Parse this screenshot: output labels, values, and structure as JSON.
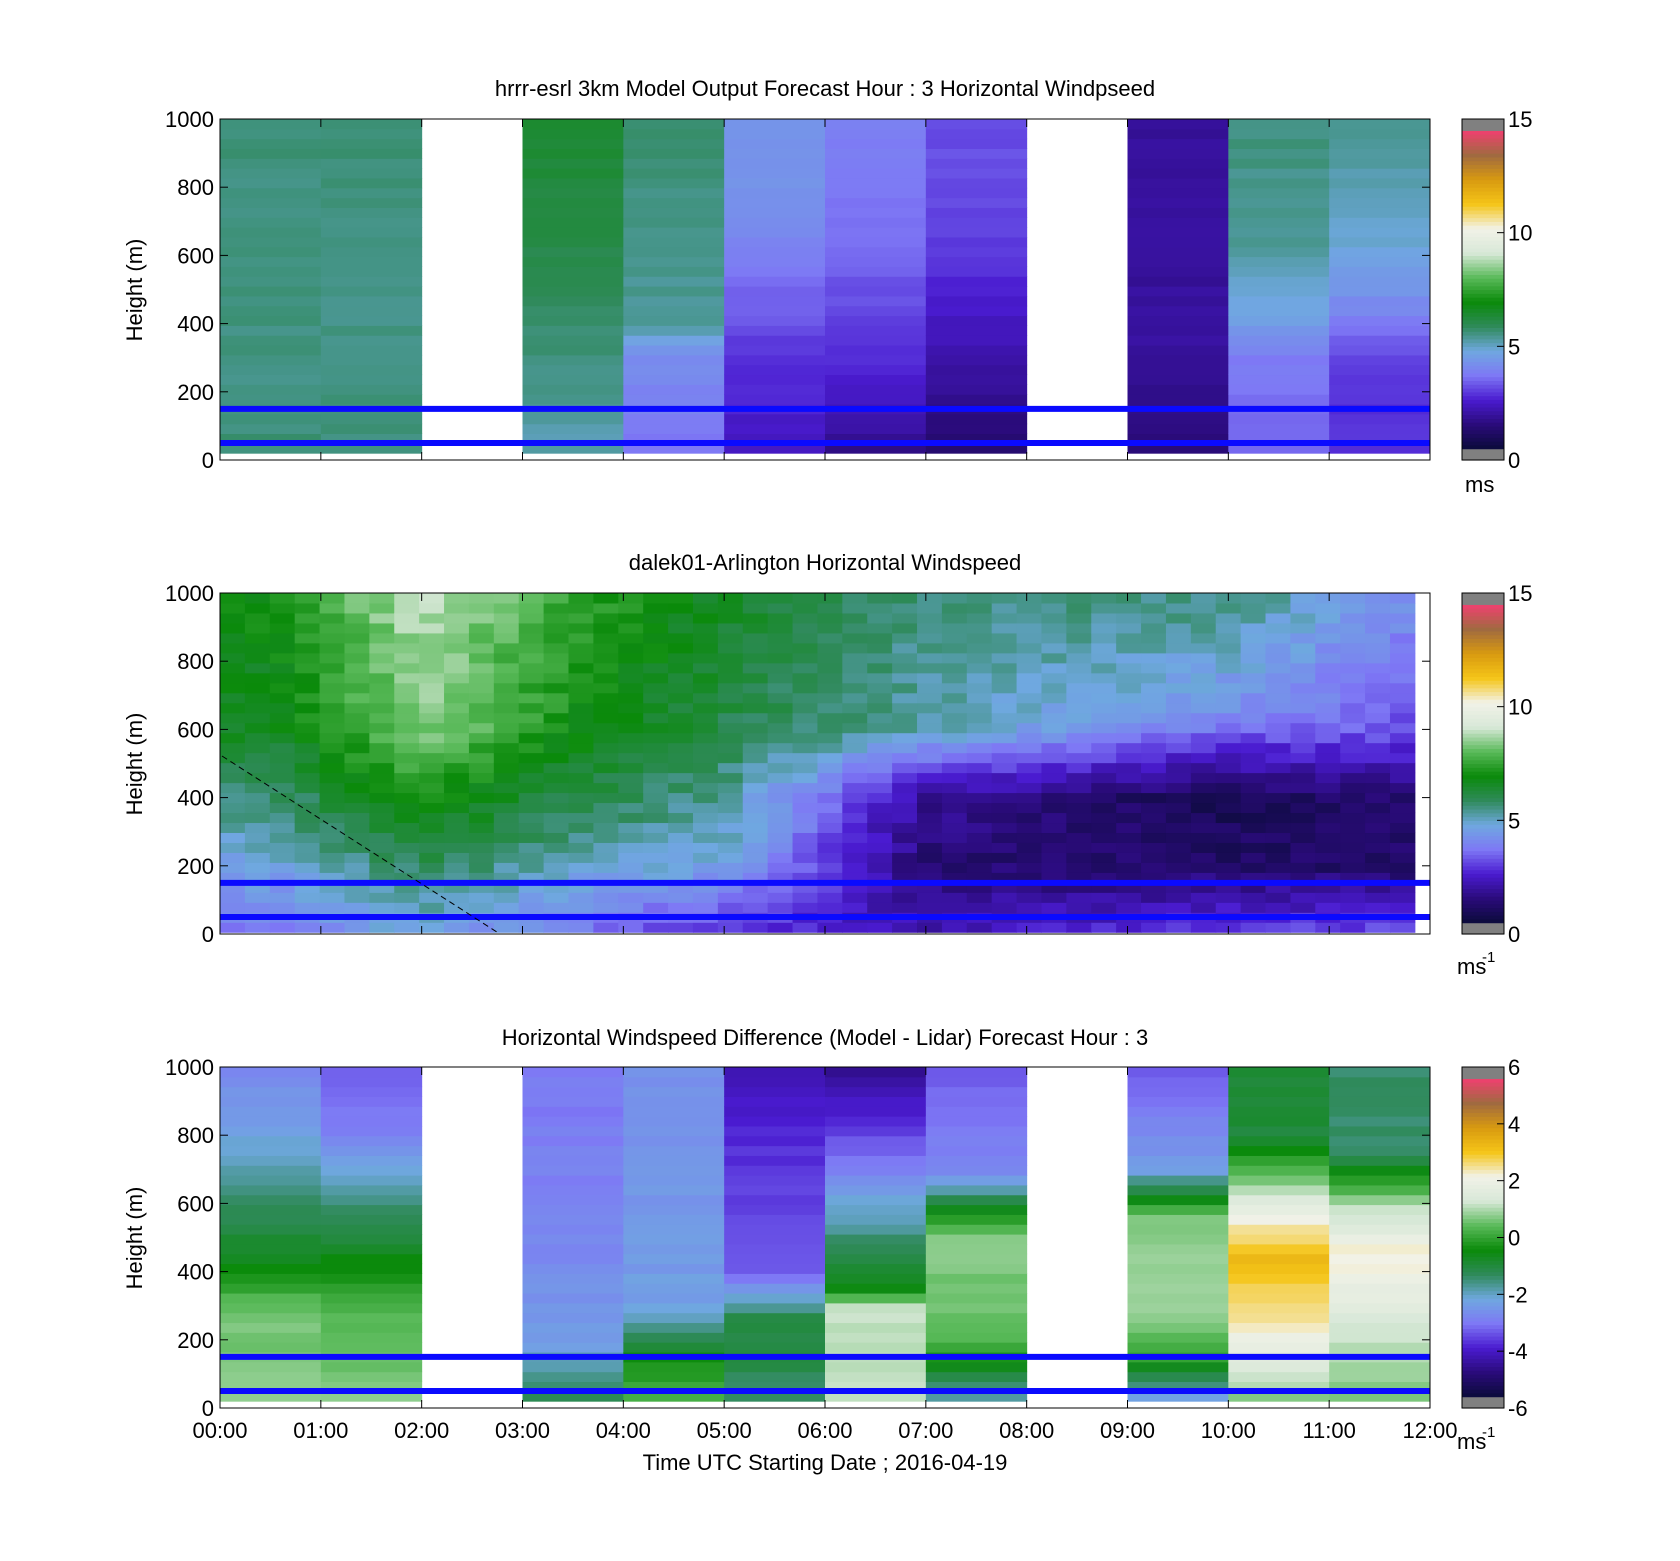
{
  "colors": {
    "overlay_line": "#0a0aff",
    "colormap": [
      "#808080",
      "#0b0b3a",
      "#2a0b7a",
      "#4a1bd0",
      "#7e78f5",
      "#6fa8e0",
      "#2f8a5a",
      "#0a8a0a",
      "#5aba5a",
      "#d8e8d8",
      "#f2f2e8",
      "#f5c518",
      "#d89a10",
      "#a06a40",
      "#f04070",
      "#808080"
    ]
  },
  "xaxis": {
    "ticks": [
      "00:00",
      "01:00",
      "02:00",
      "03:00",
      "04:00",
      "05:00",
      "06:00",
      "07:00",
      "08:00",
      "09:00",
      "10:00",
      "11:00",
      "12:00"
    ],
    "label": "Time UTC  Starting Date ; 2016-04-19"
  },
  "chart_data": [
    {
      "type": "heatmap",
      "title": "hrrr-esrl 3km Model Output   Forecast Hour : 3 Horizontal Windpseed",
      "ylabel": "Height (m)",
      "ylim": [
        0,
        1000
      ],
      "yticks": [
        "0",
        "200",
        "400",
        "600",
        "800",
        "1000"
      ],
      "xlim": [
        0,
        12
      ],
      "colorbar": {
        "min": 0,
        "max": 15,
        "ticks": [
          "0",
          "5",
          "10",
          "15"
        ],
        "unit": "ms"
      },
      "overlay_heights": [
        150,
        50
      ],
      "missing_hours": [
        2,
        8
      ],
      "profiles_by_hour": [
        [
          [
            0,
            5.6
          ],
          [
            200,
            5.4
          ],
          [
            1000,
            5.5
          ]
        ],
        [
          [
            0,
            5.5
          ],
          [
            500,
            5.4
          ],
          [
            1000,
            5.6
          ]
        ],
        null,
        [
          [
            0,
            5.0
          ],
          [
            150,
            5.2
          ],
          [
            600,
            6.0
          ],
          [
            1000,
            6.3
          ]
        ],
        [
          [
            0,
            3.4
          ],
          [
            300,
            3.9
          ],
          [
            400,
            5.2
          ],
          [
            700,
            5.4
          ],
          [
            1000,
            5.6
          ]
        ],
        [
          [
            0,
            2.0
          ],
          [
            300,
            2.6
          ],
          [
            500,
            3.3
          ],
          [
            700,
            4.0
          ],
          [
            1000,
            4.2
          ]
        ],
        [
          [
            0,
            1.2
          ],
          [
            200,
            2.2
          ],
          [
            500,
            3.0
          ],
          [
            700,
            3.4
          ],
          [
            1000,
            3.6
          ]
        ],
        [
          [
            0,
            0.8
          ],
          [
            300,
            1.8
          ],
          [
            500,
            2.4
          ],
          [
            700,
            2.8
          ],
          [
            1000,
            3.0
          ]
        ],
        null,
        [
          [
            0,
            1.0
          ],
          [
            300,
            1.6
          ],
          [
            1000,
            1.6
          ]
        ],
        [
          [
            0,
            3.2
          ],
          [
            300,
            3.5
          ],
          [
            400,
            4.3
          ],
          [
            600,
            5.2
          ],
          [
            1000,
            5.5
          ]
        ],
        [
          [
            0,
            2.5
          ],
          [
            300,
            2.7
          ],
          [
            400,
            3.6
          ],
          [
            600,
            4.6
          ],
          [
            1000,
            5.4
          ]
        ]
      ]
    },
    {
      "type": "heatmap",
      "title": "dalek01-Arlington  Horizontal Windspeed",
      "ylabel": "Height (m)",
      "ylim": [
        0,
        1000
      ],
      "yticks": [
        "0",
        "200",
        "400",
        "600",
        "800",
        "1000"
      ],
      "xlim": [
        0,
        12
      ],
      "colorbar": {
        "min": 0,
        "max": 15,
        "ticks": [
          "0",
          "5",
          "10",
          "15"
        ],
        "unit": "ms",
        "unit_exp": "-1"
      },
      "overlay_heights": [
        150,
        50
      ],
      "data_end_hour": 11.85,
      "description_points": [
        {
          "hour": 0.5,
          "profile": [
            [
              0,
              3.5
            ],
            [
              300,
              5.0
            ],
            [
              600,
              6.5
            ],
            [
              1000,
              7.0
            ]
          ]
        },
        {
          "hour": 2.0,
          "profile": [
            [
              0,
              4.5
            ],
            [
              300,
              6.5
            ],
            [
              600,
              8.5
            ],
            [
              1000,
              9.0
            ]
          ]
        },
        {
          "hour": 3.5,
          "profile": [
            [
              0,
              3.5
            ],
            [
              300,
              5.5
            ],
            [
              600,
              7.0
            ],
            [
              1000,
              7.5
            ]
          ]
        },
        {
          "hour": 5.0,
          "profile": [
            [
              0,
              2.5
            ],
            [
              200,
              4.5
            ],
            [
              600,
              6.0
            ],
            [
              1000,
              6.5
            ]
          ]
        },
        {
          "hour": 7.0,
          "profile": [
            [
              0,
              2.0
            ],
            [
              200,
              1.0
            ],
            [
              400,
              1.5
            ],
            [
              600,
              5.0
            ],
            [
              1000,
              5.5
            ]
          ]
        },
        {
          "hour": 10.0,
          "profile": [
            [
              0,
              3.0
            ],
            [
              200,
              0.8
            ],
            [
              400,
              0.5
            ],
            [
              650,
              4.0
            ],
            [
              1000,
              5.5
            ]
          ]
        },
        {
          "hour": 11.8,
          "profile": [
            [
              0,
              3.0
            ],
            [
              200,
              0.8
            ],
            [
              400,
              1.0
            ],
            [
              600,
              3.0
            ],
            [
              1000,
              4.0
            ]
          ]
        }
      ]
    },
    {
      "type": "heatmap",
      "title": "Horizontal Windspeed Difference (Model - Lidar) Forecast Hour : 3",
      "ylabel": "Height (m)",
      "ylim": [
        0,
        1000
      ],
      "yticks": [
        "0",
        "200",
        "400",
        "600",
        "800",
        "1000"
      ],
      "xlim": [
        0,
        12
      ],
      "colorbar": {
        "min": -6,
        "max": 6,
        "ticks": [
          "-6",
          "-4",
          "-2",
          "0",
          "2",
          "4",
          "6"
        ],
        "unit": "ms",
        "unit_exp": "-1"
      },
      "overlay_heights": [
        150,
        50
      ],
      "missing_hours": [
        2,
        8
      ],
      "profiles_by_hour": [
        [
          [
            0,
            0.8
          ],
          [
            300,
            0.6
          ],
          [
            400,
            -0.5
          ],
          [
            700,
            -2.0
          ],
          [
            1000,
            -3.0
          ]
        ],
        [
          [
            0,
            0.8
          ],
          [
            300,
            0.3
          ],
          [
            500,
            -1.0
          ],
          [
            800,
            -3.0
          ],
          [
            1000,
            -3.5
          ]
        ],
        null,
        [
          [
            0,
            -1.0
          ],
          [
            200,
            -2.5
          ],
          [
            500,
            -3.0
          ],
          [
            1000,
            -3.2
          ]
        ],
        [
          [
            0,
            0.5
          ],
          [
            150,
            -0.5
          ],
          [
            300,
            -2.5
          ],
          [
            1000,
            -2.8
          ]
        ],
        [
          [
            0,
            -1.5
          ],
          [
            250,
            -1.0
          ],
          [
            400,
            -3.5
          ],
          [
            800,
            -4.0
          ],
          [
            1000,
            -4.5
          ]
        ],
        [
          [
            0,
            1.2
          ],
          [
            300,
            1.2
          ],
          [
            350,
            -0.5
          ],
          [
            700,
            -3.0
          ],
          [
            1000,
            -5.0
          ]
        ],
        [
          [
            0,
            -2.5
          ],
          [
            200,
            0.5
          ],
          [
            500,
            0.8
          ],
          [
            700,
            -3.0
          ],
          [
            1000,
            -3.5
          ]
        ],
        null,
        [
          [
            0,
            -3.0
          ],
          [
            150,
            0.0
          ],
          [
            300,
            1.0
          ],
          [
            550,
            0.8
          ],
          [
            700,
            -2.5
          ],
          [
            1000,
            -3.5
          ]
        ],
        [
          [
            0,
            0.5
          ],
          [
            250,
            2.5
          ],
          [
            450,
            3.5
          ],
          [
            650,
            1.0
          ],
          [
            800,
            -1.0
          ],
          [
            1000,
            -1.0
          ]
        ],
        [
          [
            0,
            0.5
          ],
          [
            250,
            1.5
          ],
          [
            450,
            2.5
          ],
          [
            600,
            1.0
          ],
          [
            750,
            -1.5
          ],
          [
            1000,
            -1.5
          ]
        ]
      ]
    }
  ]
}
